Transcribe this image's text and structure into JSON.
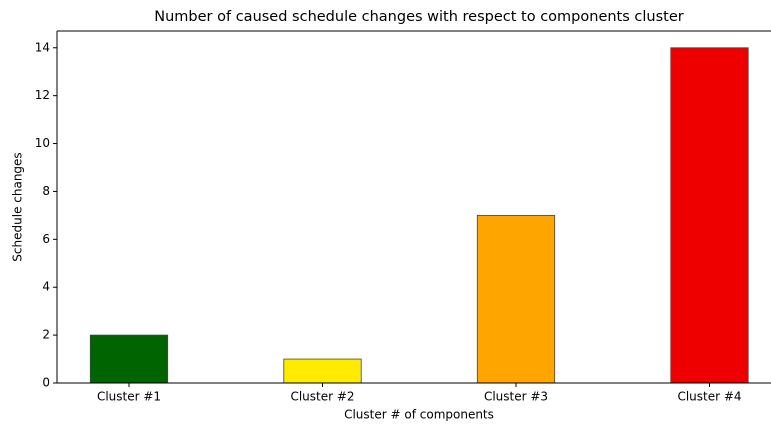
{
  "chart_data": {
    "type": "bar",
    "title": "Number of caused schedule changes with respect to components cluster",
    "x_label": "Cluster # of components",
    "y_label": "Schedule changes",
    "categories": [
      "Cluster #1",
      "Cluster #2",
      "Cluster #3",
      "Cluster #4"
    ],
    "values": [
      2,
      1,
      7,
      14
    ],
    "colors": [
      "#006400",
      "#ffea00",
      "#ffa500",
      "#ee0000"
    ],
    "ylim": [
      0,
      14.7
    ],
    "yticks": [
      0,
      2,
      4,
      6,
      8,
      10,
      12,
      14
    ]
  }
}
